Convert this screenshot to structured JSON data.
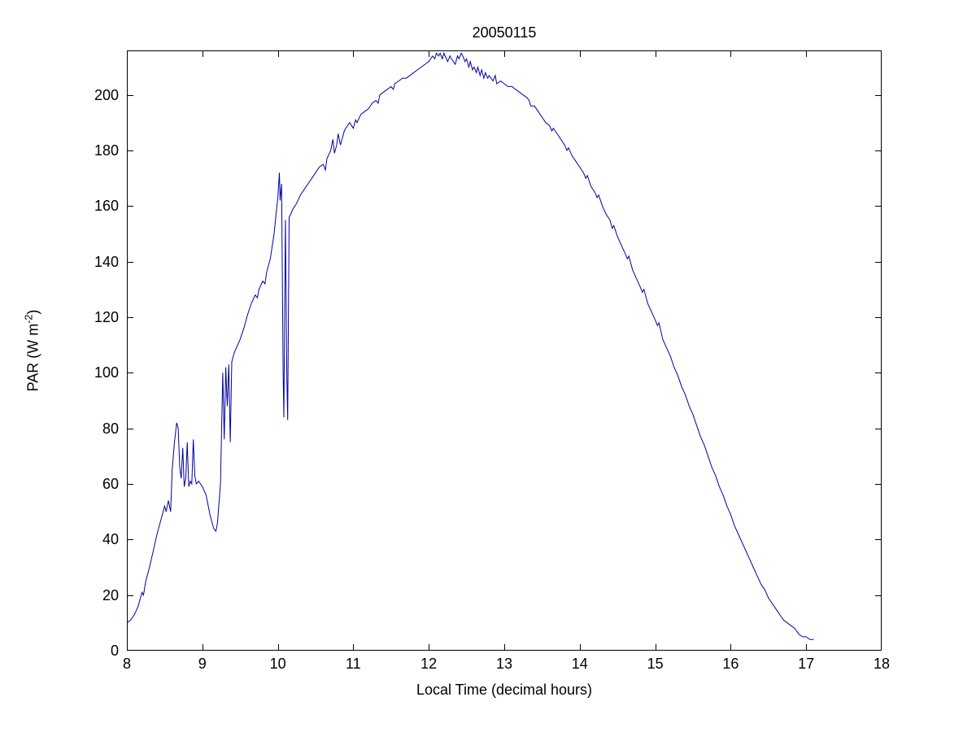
{
  "figure": {
    "background": "#ffffff"
  },
  "chart_data": {
    "type": "line",
    "title": "20050115",
    "xlabel": "Local Time (decimal hours)",
    "ylabel": "PAR (W m⁻²)",
    "ylabel_parts": {
      "prefix": "PAR (W m",
      "sup": "-2",
      "suffix": ")"
    },
    "xlim": [
      8,
      18
    ],
    "ylim": [
      0,
      216
    ],
    "xticks": [
      8,
      9,
      10,
      11,
      12,
      13,
      14,
      15,
      16,
      17,
      18
    ],
    "yticks": [
      0,
      20,
      40,
      60,
      80,
      100,
      120,
      140,
      160,
      180,
      200
    ],
    "grid": false,
    "legend_position": "none",
    "line_color": "#0000A0",
    "axis_color": "#000000",
    "tick_direction": "in",
    "series": [
      {
        "name": "PAR",
        "points": [
          [
            8.0,
            10
          ],
          [
            8.05,
            11
          ],
          [
            8.1,
            13
          ],
          [
            8.15,
            16
          ],
          [
            8.2,
            21
          ],
          [
            8.22,
            20
          ],
          [
            8.25,
            25
          ],
          [
            8.3,
            30
          ],
          [
            8.35,
            36
          ],
          [
            8.4,
            42
          ],
          [
            8.45,
            47
          ],
          [
            8.5,
            52
          ],
          [
            8.52,
            50
          ],
          [
            8.55,
            54
          ],
          [
            8.58,
            50
          ],
          [
            8.6,
            65
          ],
          [
            8.63,
            75
          ],
          [
            8.66,
            82
          ],
          [
            8.68,
            80
          ],
          [
            8.7,
            66
          ],
          [
            8.72,
            62
          ],
          [
            8.74,
            73
          ],
          [
            8.76,
            59
          ],
          [
            8.78,
            62
          ],
          [
            8.8,
            75
          ],
          [
            8.82,
            59
          ],
          [
            8.84,
            61
          ],
          [
            8.86,
            60
          ],
          [
            8.88,
            76
          ],
          [
            8.9,
            63
          ],
          [
            8.92,
            60
          ],
          [
            8.95,
            61
          ],
          [
            9.0,
            59
          ],
          [
            9.05,
            56
          ],
          [
            9.1,
            49
          ],
          [
            9.15,
            44
          ],
          [
            9.18,
            43
          ],
          [
            9.2,
            46
          ],
          [
            9.24,
            60
          ],
          [
            9.27,
            100
          ],
          [
            9.29,
            76
          ],
          [
            9.31,
            102
          ],
          [
            9.33,
            88
          ],
          [
            9.35,
            103
          ],
          [
            9.37,
            75
          ],
          [
            9.39,
            104
          ],
          [
            9.42,
            107
          ],
          [
            9.45,
            109
          ],
          [
            9.5,
            112
          ],
          [
            9.55,
            116
          ],
          [
            9.6,
            121
          ],
          [
            9.65,
            125
          ],
          [
            9.7,
            128
          ],
          [
            9.73,
            127
          ],
          [
            9.75,
            130
          ],
          [
            9.8,
            133
          ],
          [
            9.83,
            132
          ],
          [
            9.85,
            136
          ],
          [
            9.9,
            141
          ],
          [
            9.95,
            150
          ],
          [
            9.98,
            158
          ],
          [
            10.0,
            163
          ],
          [
            10.02,
            172
          ],
          [
            10.03,
            162
          ],
          [
            10.05,
            168
          ],
          [
            10.07,
            100
          ],
          [
            10.08,
            84
          ],
          [
            10.1,
            155
          ],
          [
            10.12,
            98
          ],
          [
            10.13,
            83
          ],
          [
            10.15,
            156
          ],
          [
            10.17,
            157
          ],
          [
            10.2,
            159
          ],
          [
            10.25,
            161
          ],
          [
            10.3,
            164
          ],
          [
            10.35,
            166
          ],
          [
            10.4,
            168
          ],
          [
            10.45,
            170
          ],
          [
            10.5,
            172
          ],
          [
            10.55,
            174
          ],
          [
            10.6,
            175
          ],
          [
            10.63,
            173
          ],
          [
            10.65,
            177
          ],
          [
            10.7,
            180
          ],
          [
            10.73,
            184
          ],
          [
            10.75,
            179
          ],
          [
            10.78,
            182
          ],
          [
            10.8,
            186
          ],
          [
            10.83,
            182
          ],
          [
            10.85,
            184
          ],
          [
            10.88,
            187
          ],
          [
            10.9,
            188
          ],
          [
            10.95,
            190
          ],
          [
            11.0,
            188
          ],
          [
            11.03,
            191
          ],
          [
            11.05,
            190
          ],
          [
            11.1,
            193
          ],
          [
            11.15,
            194
          ],
          [
            11.2,
            195
          ],
          [
            11.25,
            197
          ],
          [
            11.3,
            198
          ],
          [
            11.33,
            197
          ],
          [
            11.35,
            200
          ],
          [
            11.4,
            201
          ],
          [
            11.45,
            202
          ],
          [
            11.5,
            203
          ],
          [
            11.53,
            202
          ],
          [
            11.55,
            204
          ],
          [
            11.6,
            205
          ],
          [
            11.65,
            206
          ],
          [
            11.7,
            206
          ],
          [
            11.75,
            207
          ],
          [
            11.8,
            208
          ],
          [
            11.85,
            209
          ],
          [
            11.9,
            210
          ],
          [
            11.95,
            211
          ],
          [
            12.0,
            212
          ],
          [
            12.05,
            214
          ],
          [
            12.08,
            213
          ],
          [
            12.1,
            215
          ],
          [
            12.13,
            214
          ],
          [
            12.15,
            215
          ],
          [
            12.18,
            213
          ],
          [
            12.2,
            215
          ],
          [
            12.25,
            212
          ],
          [
            12.28,
            214
          ],
          [
            12.3,
            213
          ],
          [
            12.35,
            211
          ],
          [
            12.38,
            214
          ],
          [
            12.4,
            213
          ],
          [
            12.43,
            215
          ],
          [
            12.45,
            214
          ],
          [
            12.48,
            212
          ],
          [
            12.5,
            213
          ],
          [
            12.53,
            210
          ],
          [
            12.55,
            212
          ],
          [
            12.58,
            209
          ],
          [
            12.6,
            210
          ],
          [
            12.63,
            208
          ],
          [
            12.65,
            210
          ],
          [
            12.68,
            207
          ],
          [
            12.7,
            209
          ],
          [
            12.73,
            206
          ],
          [
            12.75,
            208
          ],
          [
            12.78,
            206
          ],
          [
            12.8,
            207
          ],
          [
            12.85,
            205
          ],
          [
            12.88,
            207
          ],
          [
            12.9,
            204
          ],
          [
            12.95,
            205
          ],
          [
            13.0,
            204
          ],
          [
            13.05,
            203
          ],
          [
            13.1,
            203
          ],
          [
            13.15,
            202
          ],
          [
            13.2,
            201
          ],
          [
            13.25,
            200
          ],
          [
            13.3,
            199
          ],
          [
            13.33,
            198
          ],
          [
            13.35,
            196
          ],
          [
            13.4,
            196
          ],
          [
            13.45,
            194
          ],
          [
            13.5,
            192
          ],
          [
            13.55,
            190
          ],
          [
            13.6,
            189
          ],
          [
            13.63,
            187
          ],
          [
            13.65,
            188
          ],
          [
            13.7,
            186
          ],
          [
            13.75,
            184
          ],
          [
            13.8,
            182
          ],
          [
            13.83,
            180
          ],
          [
            13.85,
            181
          ],
          [
            13.9,
            178
          ],
          [
            13.95,
            176
          ],
          [
            14.0,
            174
          ],
          [
            14.05,
            172
          ],
          [
            14.08,
            170
          ],
          [
            14.1,
            171
          ],
          [
            14.15,
            167
          ],
          [
            14.2,
            165
          ],
          [
            14.23,
            163
          ],
          [
            14.25,
            164
          ],
          [
            14.3,
            160
          ],
          [
            14.35,
            157
          ],
          [
            14.4,
            155
          ],
          [
            14.43,
            152
          ],
          [
            14.45,
            153
          ],
          [
            14.5,
            149
          ],
          [
            14.55,
            146
          ],
          [
            14.6,
            143
          ],
          [
            14.63,
            141
          ],
          [
            14.65,
            142
          ],
          [
            14.7,
            137
          ],
          [
            14.75,
            134
          ],
          [
            14.8,
            131
          ],
          [
            14.83,
            129
          ],
          [
            14.85,
            130
          ],
          [
            14.9,
            125
          ],
          [
            14.95,
            122
          ],
          [
            15.0,
            119
          ],
          [
            15.03,
            117
          ],
          [
            15.05,
            118
          ],
          [
            15.1,
            112
          ],
          [
            15.15,
            109
          ],
          [
            15.2,
            106
          ],
          [
            15.25,
            102
          ],
          [
            15.3,
            99
          ],
          [
            15.35,
            95
          ],
          [
            15.4,
            92
          ],
          [
            15.45,
            88
          ],
          [
            15.5,
            85
          ],
          [
            15.55,
            81
          ],
          [
            15.6,
            77
          ],
          [
            15.65,
            74
          ],
          [
            15.7,
            70
          ],
          [
            15.75,
            66
          ],
          [
            15.8,
            63
          ],
          [
            15.85,
            59
          ],
          [
            15.9,
            56
          ],
          [
            15.95,
            52
          ],
          [
            16.0,
            49
          ],
          [
            16.05,
            45
          ],
          [
            16.1,
            42
          ],
          [
            16.15,
            39
          ],
          [
            16.2,
            36
          ],
          [
            16.25,
            33
          ],
          [
            16.3,
            30
          ],
          [
            16.35,
            27
          ],
          [
            16.4,
            24
          ],
          [
            16.45,
            22
          ],
          [
            16.5,
            19
          ],
          [
            16.55,
            17
          ],
          [
            16.6,
            15
          ],
          [
            16.65,
            13
          ],
          [
            16.7,
            11
          ],
          [
            16.75,
            10
          ],
          [
            16.8,
            9
          ],
          [
            16.85,
            8
          ],
          [
            16.9,
            6
          ],
          [
            16.95,
            5
          ],
          [
            17.0,
            5
          ],
          [
            17.05,
            4
          ],
          [
            17.1,
            4
          ]
        ]
      }
    ]
  }
}
